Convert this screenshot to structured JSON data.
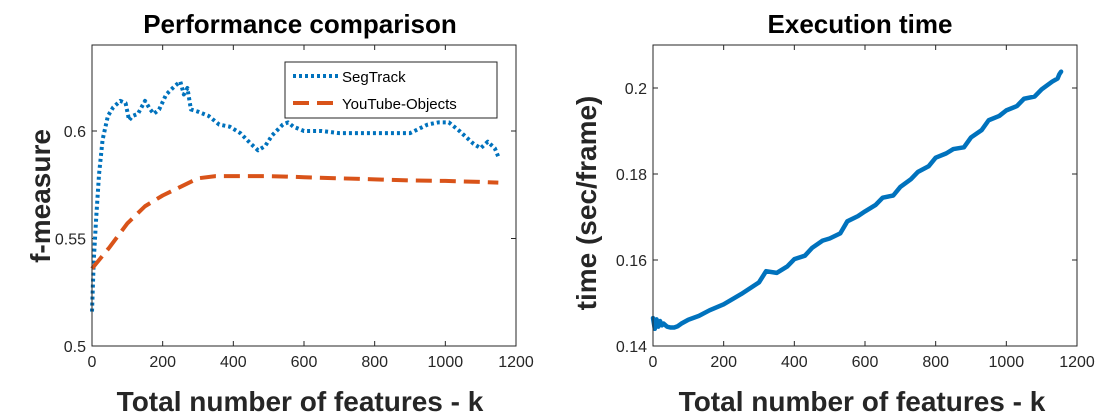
{
  "chart_data": [
    {
      "type": "line",
      "title": "Performance comparison",
      "xlabel": "Total number of features - k",
      "ylabel": "f-measure",
      "xlim": [
        0,
        1200
      ],
      "ylim": [
        0.5,
        0.64
      ],
      "xticks": [
        "0",
        "200",
        "400",
        "600",
        "800",
        "1000",
        "1200"
      ],
      "yticks": [
        "0.5",
        "0.55",
        "0.6"
      ],
      "legend_position": "top-right",
      "series": [
        {
          "name": "SegTrack",
          "color": "#0072BD",
          "style": "dotted",
          "x": [
            0,
            5,
            12,
            20,
            30,
            45,
            60,
            80,
            95,
            105,
            115,
            130,
            150,
            165,
            175,
            190,
            210,
            235,
            250,
            260,
            270,
            280,
            300,
            330,
            360,
            390,
            420,
            450,
            470,
            490,
            510,
            540,
            555,
            570,
            600,
            650,
            700,
            750,
            800,
            850,
            900,
            950,
            980,
            1010,
            1040,
            1060,
            1080,
            1100,
            1120,
            1140,
            1150
          ],
          "y": [
            0.516,
            0.54,
            0.56,
            0.58,
            0.596,
            0.607,
            0.611,
            0.614,
            0.613,
            0.605,
            0.607,
            0.608,
            0.614,
            0.61,
            0.608,
            0.61,
            0.617,
            0.621,
            0.623,
            0.617,
            0.62,
            0.61,
            0.609,
            0.607,
            0.603,
            0.602,
            0.599,
            0.594,
            0.591,
            0.593,
            0.598,
            0.603,
            0.604,
            0.602,
            0.6,
            0.6,
            0.599,
            0.599,
            0.599,
            0.599,
            0.599,
            0.603,
            0.604,
            0.604,
            0.6,
            0.597,
            0.594,
            0.592,
            0.595,
            0.592,
            0.588
          ]
        },
        {
          "name": "YouTube-Objects",
          "color": "#D95319",
          "style": "dashed",
          "x": [
            0,
            50,
            100,
            150,
            200,
            250,
            300,
            350,
            400,
            450,
            500,
            550,
            600,
            700,
            800,
            900,
            1000,
            1100,
            1150
          ],
          "y": [
            0.536,
            0.546,
            0.557,
            0.565,
            0.57,
            0.574,
            0.578,
            0.579,
            0.579,
            0.579,
            0.579,
            0.5788,
            0.5785,
            0.578,
            0.5775,
            0.577,
            0.5768,
            0.5763,
            0.576
          ]
        }
      ]
    },
    {
      "type": "line",
      "title": "Execution time",
      "xlabel": "Total number of features - k",
      "ylabel": "time (sec/frame)",
      "xlim": [
        0,
        1200
      ],
      "ylim": [
        0.14,
        0.21
      ],
      "xticks": [
        "0",
        "200",
        "400",
        "600",
        "800",
        "1000",
        "1200"
      ],
      "yticks": [
        "0.14",
        "0.16",
        "0.18",
        "0.2"
      ],
      "series": [
        {
          "name": "",
          "color": "#0072BD",
          "style": "solid",
          "x": [
            0,
            5,
            10,
            15,
            20,
            25,
            30,
            40,
            50,
            60,
            70,
            80,
            100,
            130,
            160,
            200,
            250,
            300,
            320,
            350,
            380,
            400,
            430,
            450,
            480,
            500,
            530,
            550,
            580,
            600,
            630,
            650,
            680,
            700,
            730,
            750,
            780,
            800,
            830,
            850,
            880,
            900,
            930,
            950,
            980,
            1000,
            1030,
            1050,
            1080,
            1100,
            1130,
            1145,
            1150,
            1155
          ],
          "y": [
            0.1465,
            0.144,
            0.1462,
            0.1445,
            0.1458,
            0.1448,
            0.1452,
            0.1445,
            0.1443,
            0.1443,
            0.1446,
            0.1452,
            0.1461,
            0.147,
            0.1483,
            0.1497,
            0.1521,
            0.1548,
            0.1574,
            0.157,
            0.1585,
            0.1602,
            0.161,
            0.1628,
            0.1645,
            0.165,
            0.1662,
            0.169,
            0.1702,
            0.1713,
            0.1728,
            0.1745,
            0.175,
            0.177,
            0.1788,
            0.1805,
            0.1818,
            0.1838,
            0.1848,
            0.1858,
            0.1862,
            0.1885,
            0.1902,
            0.1925,
            0.1935,
            0.1948,
            0.1958,
            0.1975,
            0.198,
            0.1997,
            0.2015,
            0.2022,
            0.2032,
            0.2038
          ]
        }
      ]
    }
  ]
}
